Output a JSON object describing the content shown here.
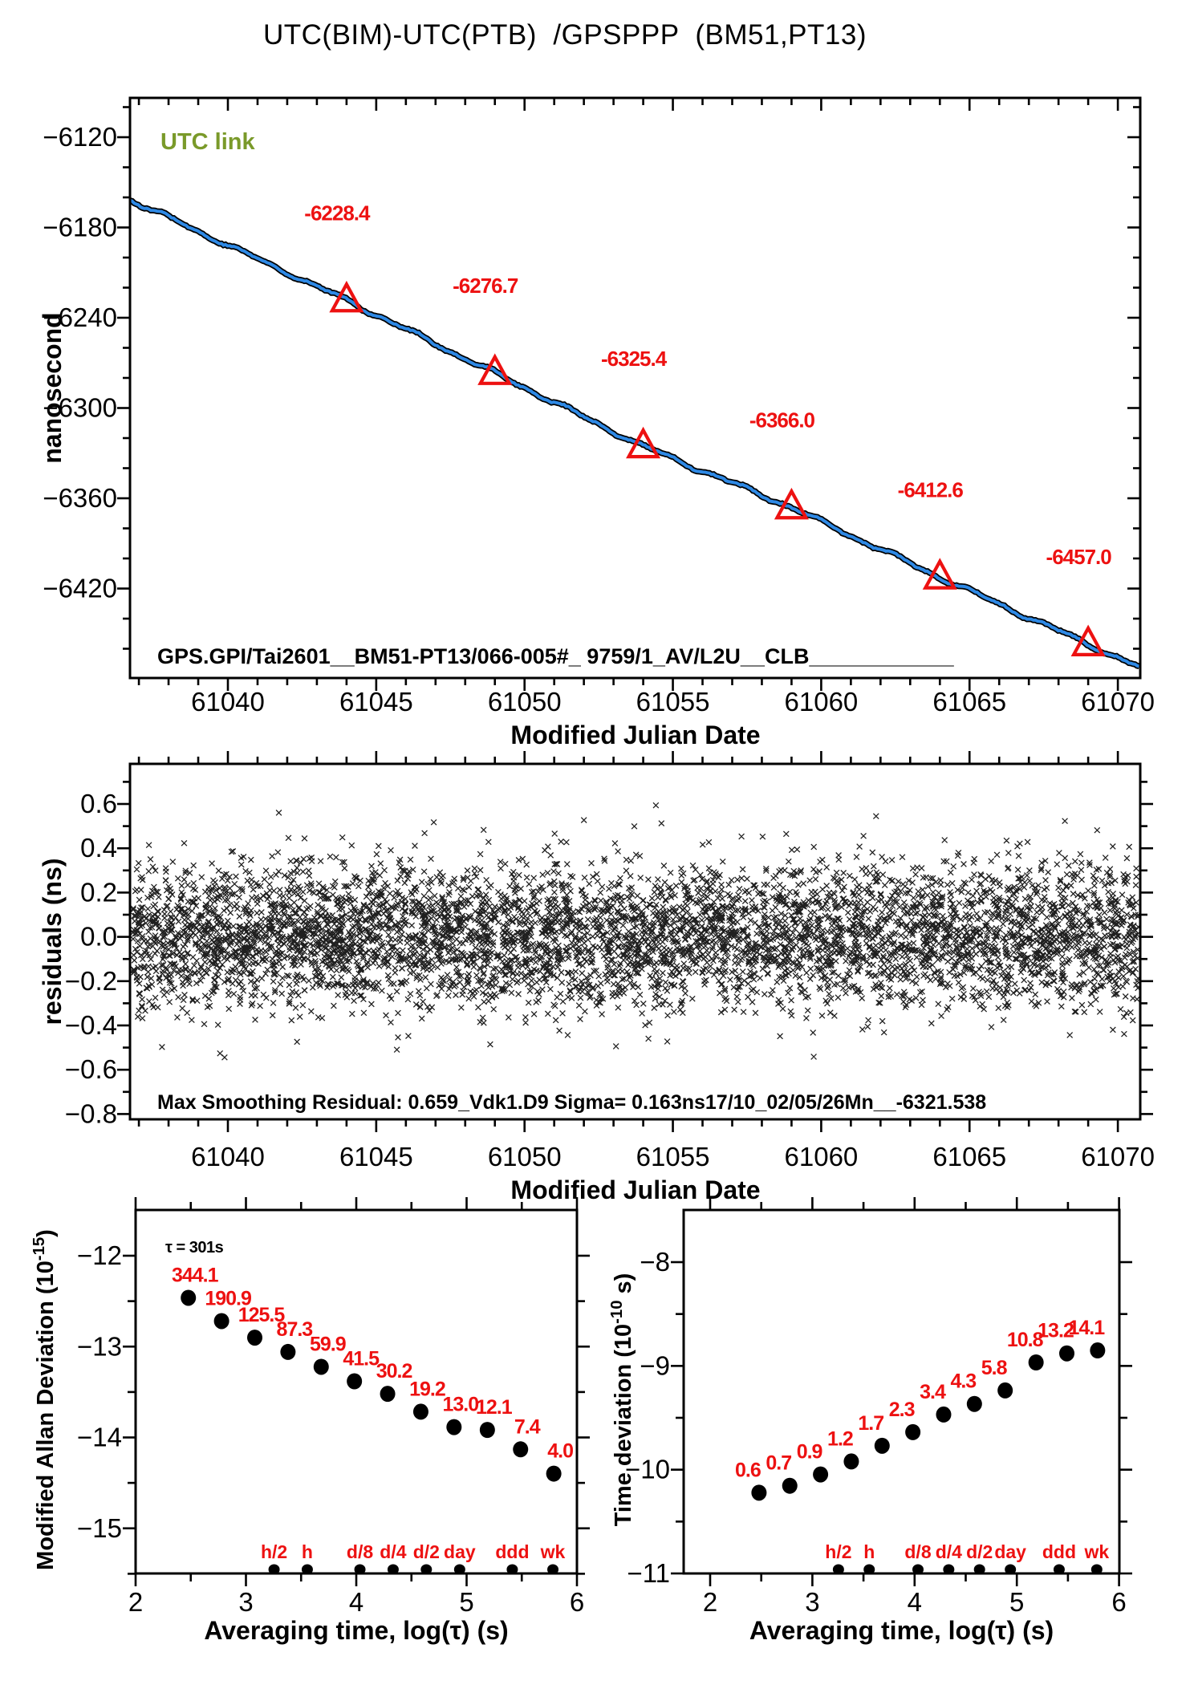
{
  "title": "UTC(BIM)-UTC(PTB)  /GPSPPP  (BM51,PT13)",
  "colors": {
    "red": "#ed1111",
    "blue": "#2e89e5",
    "green": "#7a9a2a",
    "black": "#000000"
  },
  "chart_data": {
    "utc_link": {
      "type": "line",
      "corner_note": "UTC link",
      "footer": "GPS.GPI/Tai2601__BM51-PT13/066-005#_ 9759/1_AV/L2U__CLB____________",
      "xlabel": "Modified Julian Date",
      "ylabel": "nanosecond",
      "xlim": [
        61036.7,
        61070.76
      ],
      "ylim": [
        -6479.5,
        -6093.9
      ],
      "x_ticks": [
        61040,
        61045,
        61050,
        61055,
        61060,
        61065,
        61070
      ],
      "y_ticks": [
        -6120,
        -6180,
        -6240,
        -6300,
        -6360,
        -6420
      ],
      "x_minor_step": 1,
      "y_minor_step": 20,
      "line_points": [
        [
          61036.7,
          -6161.6
        ],
        [
          61044,
          -6228.4
        ],
        [
          61049,
          -6276.7
        ],
        [
          61054,
          -6325.4
        ],
        [
          61059,
          -6366.0
        ],
        [
          61064,
          -6412.6
        ],
        [
          61069,
          -6457.0
        ],
        [
          61070.76,
          -6472.5
        ]
      ],
      "markers": [
        {
          "mjd": 61044,
          "value": -6228.4,
          "label": "-6228.4"
        },
        {
          "mjd": 61049,
          "value": -6276.7,
          "label": "-6276.7"
        },
        {
          "mjd": 61054,
          "value": -6325.4,
          "label": "-6325.4"
        },
        {
          "mjd": 61059,
          "value": -6366.0,
          "label": "-6366.0"
        },
        {
          "mjd": 61064,
          "value": -6412.6,
          "label": "-6412.6"
        },
        {
          "mjd": 61069,
          "value": -6457.0,
          "label": "-6457.0"
        }
      ]
    },
    "residuals": {
      "type": "scatter",
      "footer": "Max Smoothing Residual: 0.659_Vdk1.D9  Sigma= 0.163ns17/10_02/05/26Mn__-6321.538",
      "xlabel": "Modified Julian Date",
      "ylabel": "residuals (ns)",
      "xlim": [
        61036.7,
        61070.76
      ],
      "ylim": [
        -0.824,
        0.781
      ],
      "x_ticks": [
        61040,
        61045,
        61050,
        61055,
        61060,
        61065,
        61070
      ],
      "y_ticks": [
        0.6,
        0.4,
        0.2,
        0.0,
        -0.2,
        -0.4,
        -0.6,
        -0.8
      ],
      "x_minor_step": 1,
      "y_minor_step": 0.1,
      "sigma_ns": 0.163,
      "n_points": 5600,
      "seed": 260517
    },
    "mdev": {
      "type": "scatter",
      "tau_note": "τ = 301s",
      "xlabel": "Averaging time, log(τ) (s)",
      "ylabel": {
        "pre": "Modified Allan Deviation (10",
        "sup": "-15",
        "post": ")"
      },
      "xlim": [
        2,
        6
      ],
      "ylim": [
        -15.5,
        -11.5
      ],
      "x_ticks": [
        2,
        3,
        4,
        5,
        6
      ],
      "y_ticks": [
        -12,
        -13,
        -14,
        -15
      ],
      "unit_exponent": -15,
      "log_tau": [
        2.478,
        2.779,
        3.08,
        3.381,
        3.682,
        3.983,
        4.284,
        4.585,
        4.886,
        5.188,
        5.489,
        5.79
      ],
      "values": [
        344.1,
        190.9,
        125.5,
        87.3,
        59.9,
        41.5,
        30.2,
        19.2,
        13.0,
        12.1,
        7.4,
        4.0
      ],
      "point_labels": [
        "344.1",
        "190.9",
        "125.5",
        "87.3",
        "59.9",
        "41.5",
        "30.2",
        "19.2",
        "13.0",
        "12.1",
        "7.4",
        "4.0"
      ]
    },
    "tdev": {
      "type": "scatter",
      "xlabel": "Averaging time, log(τ) (s)",
      "ylabel": {
        "pre": "Time deviation (10",
        "sup": "-10",
        "post": " s)"
      },
      "xlim": [
        1.74,
        6
      ],
      "ylim": [
        -11.0,
        -7.5
      ],
      "x_ticks": [
        2,
        3,
        4,
        5,
        6
      ],
      "y_ticks": [
        -8,
        -9,
        -10,
        -11
      ],
      "unit_exponent": -10,
      "log_tau": [
        2.478,
        2.779,
        3.08,
        3.381,
        3.682,
        3.983,
        4.284,
        4.585,
        4.886,
        5.188,
        5.489,
        5.79
      ],
      "values": [
        0.6,
        0.7,
        0.9,
        1.2,
        1.7,
        2.3,
        3.4,
        4.3,
        5.8,
        10.8,
        13.2,
        14.1
      ],
      "point_labels": [
        "0.6",
        "0.7",
        "0.9",
        "1.2",
        "1.7",
        "2.3",
        "3.4",
        "4.3",
        "5.8",
        "10.8",
        "13.2",
        "14.1"
      ]
    },
    "time_marks": [
      {
        "label": "h/2",
        "log_tau": 3.255
      },
      {
        "label": "h",
        "log_tau": 3.556
      },
      {
        "label": "d/8",
        "log_tau": 4.033
      },
      {
        "label": "d/4",
        "log_tau": 4.334
      },
      {
        "label": "d/2",
        "log_tau": 4.635
      },
      {
        "label": "day",
        "log_tau": 4.937
      },
      {
        "label": "ddd",
        "log_tau": 5.414
      },
      {
        "label": "wk",
        "log_tau": 5.782
      }
    ]
  }
}
